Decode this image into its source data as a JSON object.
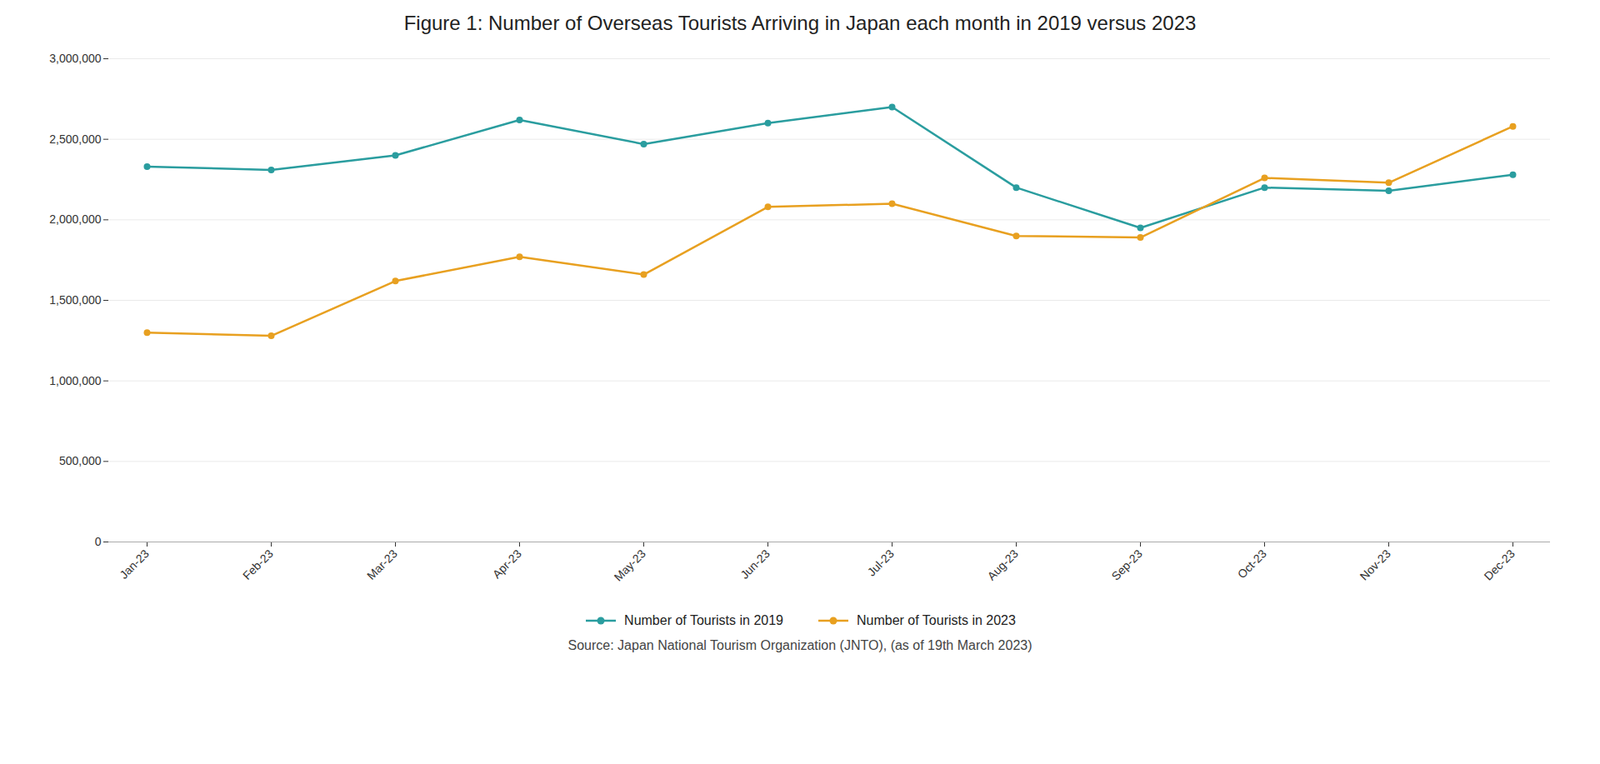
{
  "chart_data": {
    "type": "line",
    "title": "Figure 1: Number of Overseas Tourists Arriving in Japan each month in 2019 versus 2023",
    "annotations": [
      "Source: Japan National Tourism Organization (JNTO), (as of 19th March 2023)"
    ],
    "categories": [
      "Jan-23",
      "Feb-23",
      "Mar-23",
      "Apr-23",
      "May-23",
      "Jun-23",
      "Jul-23",
      "Aug-23",
      "Sep-23",
      "Oct-23",
      "Nov-23",
      "Dec-23"
    ],
    "series": [
      {
        "name": "Number of Tourists in 2019",
        "color": "#2a9d9f",
        "marker": "circle",
        "values": [
          2330000,
          2310000,
          2400000,
          2620000,
          2470000,
          2600000,
          2700000,
          2200000,
          1950000,
          2200000,
          2180000,
          2280000
        ]
      },
      {
        "name": "Number of Tourists in 2023",
        "color": "#e8a020",
        "marker": "circle",
        "values": [
          1300000,
          1280000,
          1620000,
          1770000,
          1660000,
          2080000,
          2100000,
          1900000,
          1890000,
          2260000,
          2230000,
          2580000
        ]
      }
    ],
    "ylim": [
      0,
      3000000
    ],
    "yticks": [
      0,
      {
        "value": 500000,
        "label": "500,000"
      },
      {
        "value": 1000000,
        "label": "1,000,000"
      },
      {
        "value": 1500000,
        "label": "1,500,000"
      },
      {
        "value": 2000000,
        "label": "2,000,000"
      },
      {
        "value": 2500000,
        "label": "2,500,000"
      },
      {
        "value": 3000000,
        "label": "3,000,000"
      }
    ],
    "grid": true,
    "legend": "bottom"
  }
}
